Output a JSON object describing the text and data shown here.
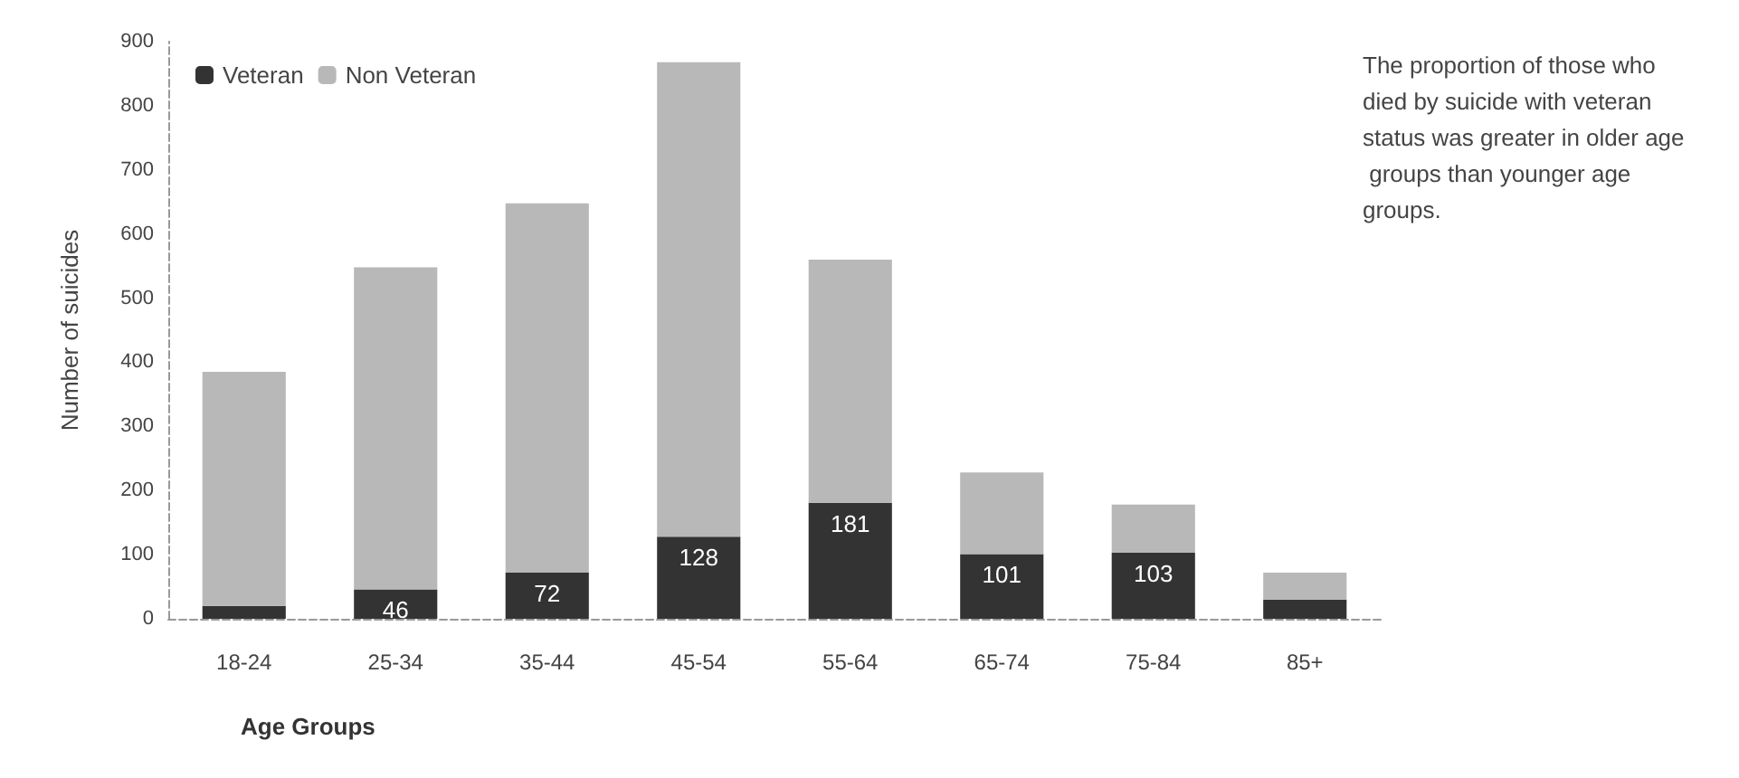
{
  "chart_data": {
    "type": "bar",
    "stacked": true,
    "xlabel": "Age Groups",
    "ylabel": "Number of suicides",
    "categories": [
      "18-24",
      "25-34",
      "35-44",
      "45-54",
      "55-64",
      "65-74",
      "75-84",
      "85+"
    ],
    "series": [
      {
        "name": "Veteran",
        "color": "#333333",
        "values": [
          20,
          46,
          72,
          128,
          181,
          101,
          103,
          30
        ],
        "value_labels": [
          null,
          "46",
          "72",
          "128",
          "181",
          "101",
          "103",
          null
        ]
      },
      {
        "name": "Non Veteran",
        "color": "#b8b8b8",
        "values": [
          365,
          502,
          576,
          740,
          379,
          127,
          75,
          42
        ]
      }
    ],
    "ylim": [
      0,
      900
    ],
    "yticks": [
      0,
      100,
      200,
      300,
      400,
      500,
      600,
      700,
      800,
      900
    ],
    "legend": "top left",
    "grid": false,
    "annotations": [
      "The proportion of those who died by suicide with veteran status was greater in older age groups than younger age groups."
    ]
  }
}
